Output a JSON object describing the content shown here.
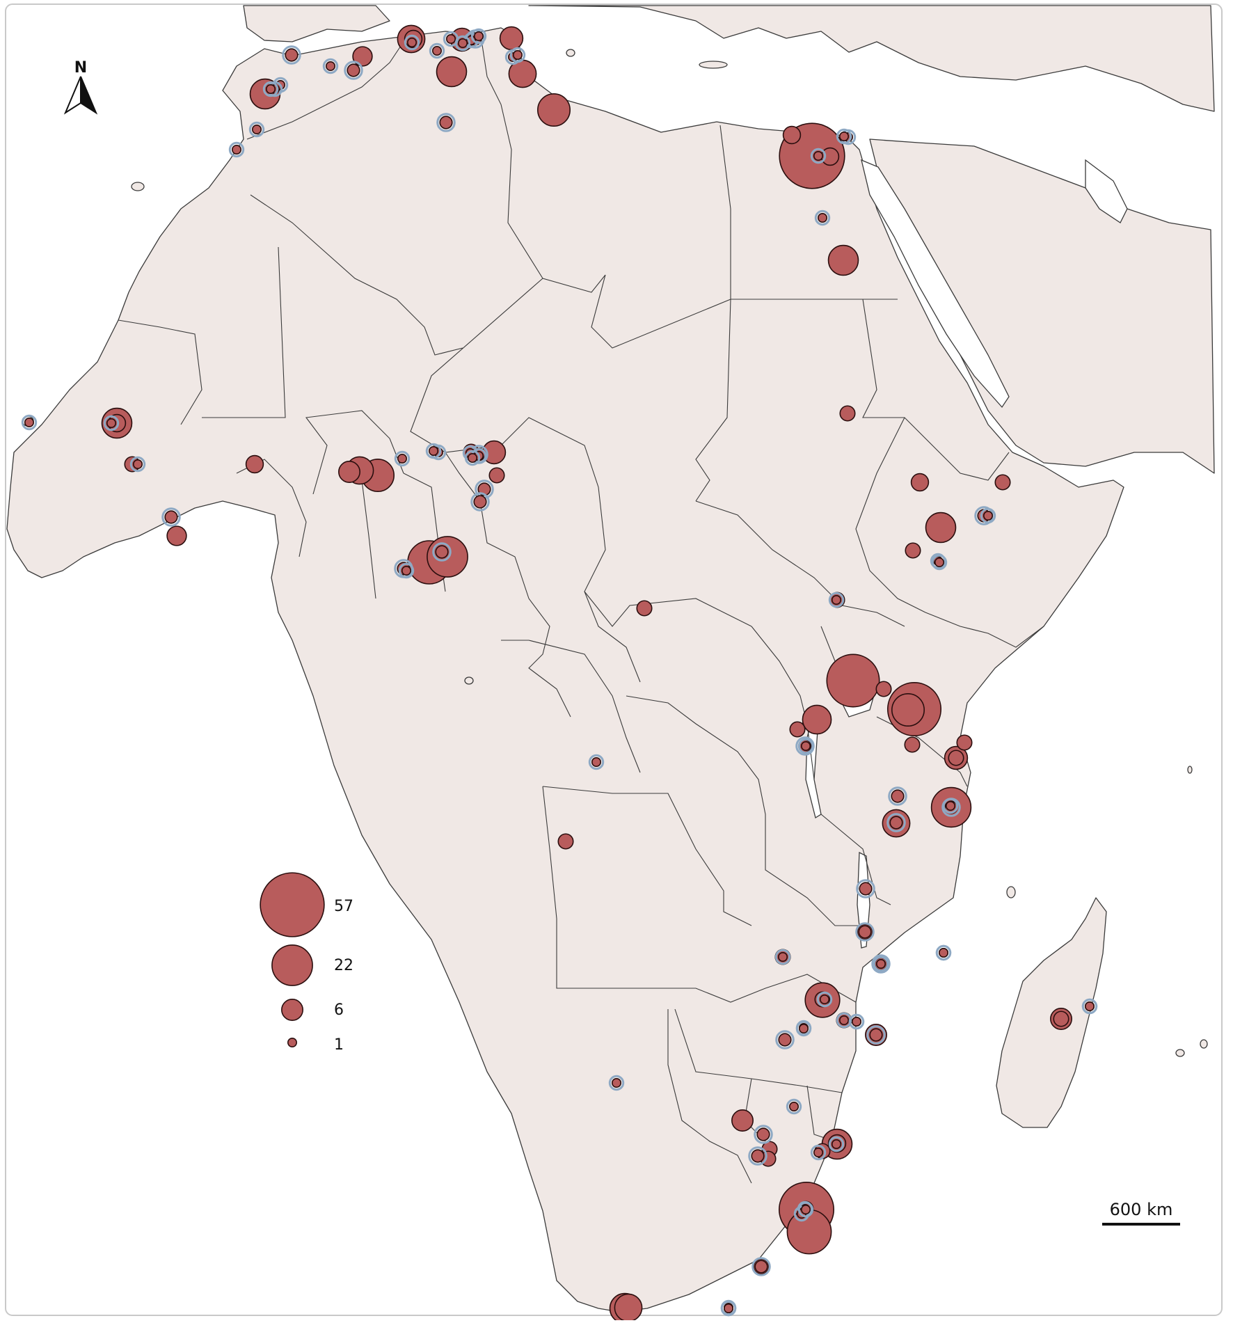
{
  "colors": {
    "land": "#f0e8e5",
    "sea": "#ffffff",
    "border": "#3a3a3a",
    "bubble_fill": "#b85c5c",
    "bubble_stroke": "#2a0e0e",
    "halo": "#8ea9c4"
  },
  "north_arrow": {
    "label": "N",
    "icon": "north-arrow-icon"
  },
  "scale_bar": {
    "label": "600 km"
  },
  "legend": {
    "items": [
      {
        "value": 57,
        "label": "57"
      },
      {
        "value": 22,
        "label": "22"
      },
      {
        "value": 6,
        "label": "6"
      },
      {
        "value": 1,
        "label": "1"
      }
    ]
  },
  "bubble_scale": "proportional area; radius relative to count",
  "sites_note": "bubble counts estimated from marker sizes against the legend",
  "sites": [
    {
      "id": "s1",
      "count": 1
    },
    {
      "id": "s2",
      "count": 4
    },
    {
      "id": "s3",
      "count": 3
    },
    {
      "id": "s4",
      "count": 2
    },
    {
      "id": "s5",
      "count": 5
    },
    {
      "id": "s6",
      "count": 1
    },
    {
      "id": "s7",
      "count": 1
    },
    {
      "id": "s8",
      "count": 12
    },
    {
      "id": "s9",
      "count": 2
    },
    {
      "id": "s10",
      "count": 1
    },
    {
      "id": "s11",
      "count": 2
    },
    {
      "id": "s12",
      "count": 1
    },
    {
      "id": "s13",
      "count": 1
    },
    {
      "id": "s14",
      "count": 1
    },
    {
      "id": "s15",
      "count": 1
    },
    {
      "id": "s16",
      "count": 12
    },
    {
      "id": "s17",
      "count": 1
    },
    {
      "id": "s18",
      "count": 5
    },
    {
      "id": "s19",
      "count": 4
    },
    {
      "id": "s20",
      "count": 1
    },
    {
      "id": "s21",
      "count": 1
    },
    {
      "id": "s22",
      "count": 2
    },
    {
      "id": "s23",
      "count": 7
    },
    {
      "id": "s24",
      "count": 2
    },
    {
      "id": "s25",
      "count": 12
    },
    {
      "id": "s26",
      "count": 57
    },
    {
      "id": "s27",
      "count": 1
    },
    {
      "id": "s28",
      "count": 1
    },
    {
      "id": "s29",
      "count": 1
    },
    {
      "id": "s30",
      "count": 10
    },
    {
      "id": "s31",
      "count": 7
    },
    {
      "id": "s32",
      "count": 1
    },
    {
      "id": "s33",
      "count": 10
    },
    {
      "id": "s34",
      "count": 14
    },
    {
      "id": "s35",
      "count": 1
    },
    {
      "id": "s36",
      "count": 1
    },
    {
      "id": "s37",
      "count": 4
    },
    {
      "id": "s38",
      "count": 1
    },
    {
      "id": "s39",
      "count": 4
    },
    {
      "id": "s40",
      "count": 1
    },
    {
      "id": "s41",
      "count": 12
    },
    {
      "id": "s42",
      "count": 1
    },
    {
      "id": "s43",
      "count": 1
    },
    {
      "id": "s44",
      "count": 3
    },
    {
      "id": "s45",
      "count": 4
    },
    {
      "id": "s46",
      "count": 3
    },
    {
      "id": "s47",
      "count": 1
    },
    {
      "id": "s48",
      "count": 3
    },
    {
      "id": "s49",
      "count": 1
    },
    {
      "id": "s50",
      "count": 1
    },
    {
      "id": "s51",
      "count": 3
    },
    {
      "id": "s52",
      "count": 1
    },
    {
      "id": "s53",
      "count": 2
    },
    {
      "id": "s54",
      "count": 12
    },
    {
      "id": "s55",
      "count": 37
    },
    {
      "id": "s56",
      "count": 3
    },
    {
      "id": "s57",
      "count": 38
    },
    {
      "id": "s58",
      "count": 14
    },
    {
      "id": "s59",
      "count": 11
    },
    {
      "id": "s60",
      "count": 3
    },
    {
      "id": "s61",
      "count": 2
    },
    {
      "id": "s62",
      "count": 1
    },
    {
      "id": "s63",
      "count": 3
    },
    {
      "id": "s64",
      "count": 3
    },
    {
      "id": "s65",
      "count": 2
    },
    {
      "id": "s66",
      "count": 3
    },
    {
      "id": "s67",
      "count": 10
    },
    {
      "id": "s68",
      "count": 1
    },
    {
      "id": "s69",
      "count": 7
    },
    {
      "id": "s70",
      "count": 2
    },
    {
      "id": "s71",
      "count": 2
    },
    {
      "id": "s72",
      "count": 21
    },
    {
      "id": "s73",
      "count": 2
    },
    {
      "id": "s74",
      "count": 2
    },
    {
      "id": "s75",
      "count": 1
    },
    {
      "id": "s76",
      "count": 3
    },
    {
      "id": "s77",
      "count": 16
    },
    {
      "id": "s78",
      "count": 3
    },
    {
      "id": "s79",
      "count": 1
    },
    {
      "id": "s80",
      "count": 26
    },
    {
      "id": "s81",
      "count": 2
    },
    {
      "id": "s82",
      "count": 1
    },
    {
      "id": "s83",
      "count": 1
    },
    {
      "id": "s84",
      "count": 1
    },
    {
      "id": "s85",
      "count": 6
    },
    {
      "id": "s86",
      "count": 1
    },
    {
      "id": "s87",
      "count": 6
    },
    {
      "id": "s88",
      "count": 1
    },
    {
      "id": "s89",
      "count": 6
    },
    {
      "id": "s90",
      "count": 1
    },
    {
      "id": "s91",
      "count": 2
    },
    {
      "id": "s92",
      "count": 3
    },
    {
      "id": "s93",
      "count": 2
    },
    {
      "id": "s94",
      "count": 3
    },
    {
      "id": "s95",
      "count": 40
    },
    {
      "id": "s96",
      "count": 3
    },
    {
      "id": "s97",
      "count": 1
    },
    {
      "id": "s98",
      "count": 1
    },
    {
      "id": "s99",
      "count": 4
    },
    {
      "id": "s100",
      "count": 3
    },
    {
      "id": "s101",
      "count": 1
    },
    {
      "id": "s102",
      "count": 1
    },
    {
      "id": "s103",
      "count": 12
    },
    {
      "id": "s104",
      "count": 1
    },
    {
      "id": "s105",
      "count": 1
    },
    {
      "id": "s106",
      "count": 10
    },
    {
      "id": "s107",
      "count": 12
    },
    {
      "id": "s108",
      "count": 1
    },
    {
      "id": "s109",
      "count": 2
    },
    {
      "id": "s110",
      "count": 1
    },
    {
      "id": "s111",
      "count": 1
    },
    {
      "id": "s112",
      "count": 3
    },
    {
      "id": "s113",
      "count": 2
    },
    {
      "id": "s114",
      "count": 1
    },
    {
      "id": "s115",
      "count": 3
    },
    {
      "id": "s116",
      "count": 1
    },
    {
      "id": "s117",
      "count": 3
    },
    {
      "id": "s118",
      "count": 2
    },
    {
      "id": "s119",
      "count": 1
    },
    {
      "id": "s120",
      "count": 1
    },
    {
      "id": "s121",
      "count": 3
    },
    {
      "id": "s122",
      "count": 1
    },
    {
      "id": "s123",
      "count": 3
    },
    {
      "id": "s124",
      "count": 1
    },
    {
      "id": "s125",
      "count": 3
    },
    {
      "id": "s126",
      "count": 1
    },
    {
      "id": "s127",
      "count": 1
    },
    {
      "id": "s128",
      "count": 10
    },
    {
      "id": "s129",
      "count": 6
    },
    {
      "id": "s130",
      "count": 1
    },
    {
      "id": "s131",
      "count": 1
    },
    {
      "id": "s132",
      "count": 3
    },
    {
      "id": "s133",
      "count": 7
    },
    {
      "id": "s134",
      "count": 1
    },
    {
      "id": "s135",
      "count": 1
    },
    {
      "id": "s136",
      "count": 2
    },
    {
      "id": "s137",
      "count": 14
    },
    {
      "id": "s138",
      "count": 25
    },
    {
      "id": "s139",
      "count": 1
    },
    {
      "id": "s140",
      "count": 2
    },
    {
      "id": "s141",
      "count": 3
    },
    {
      "id": "s142",
      "count": 2
    },
    {
      "id": "s143",
      "count": 2
    },
    {
      "id": "s144",
      "count": 22
    },
    {
      "id": "s145",
      "count": 2
    },
    {
      "id": "s146",
      "count": 4
    }
  ]
}
